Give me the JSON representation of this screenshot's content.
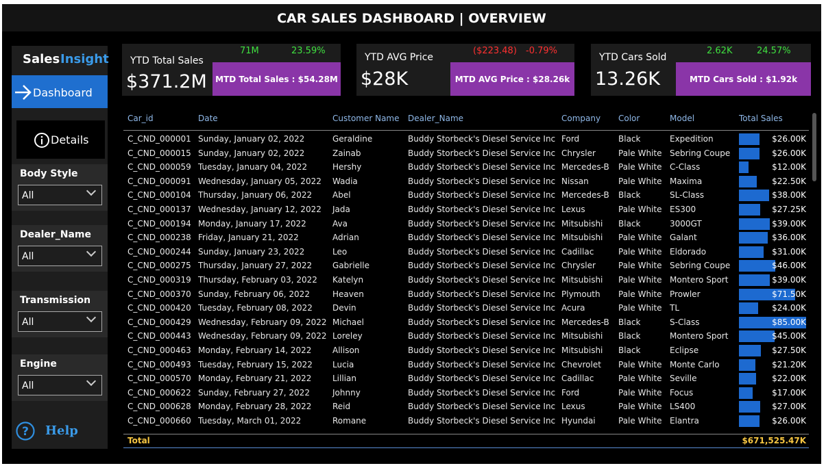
{
  "header": {
    "title": "CAR SALES DASHBOARD | OVERVIEW"
  },
  "sidebar": {
    "brand": [
      "Sales",
      "Insight"
    ],
    "nav": [
      "Dashboard",
      "Details"
    ],
    "filters": [
      {
        "label": "Body Style",
        "value": "All"
      },
      {
        "label": "Dealer_Name",
        "value": "All"
      },
      {
        "label": "Transmission",
        "value": "All"
      },
      {
        "label": "Engine",
        "value": "All"
      }
    ],
    "help": "Help"
  },
  "kpis": [
    {
      "title": "YTD Total Sales",
      "value": "$371.2M",
      "delta": "71M",
      "pct": "23.59%",
      "mtd": "MTD Total Sales : $54.28M"
    },
    {
      "title": "YTD AVG Price",
      "value": "$28K",
      "delta": "($223.48)",
      "pct": "-0.79%",
      "mtd": "MTD AVG Price : $28.26k"
    },
    {
      "title": "YTD Cars Sold",
      "value": "13.26K",
      "delta": "2.62K",
      "pct": "24.57%",
      "mtd": "MTD Cars Sold : $1.92k"
    }
  ],
  "table": {
    "columns": [
      "Car_id",
      "Date",
      "Customer Name",
      "Dealer_Name",
      "Company",
      "Color",
      "Model",
      "Total Sales"
    ],
    "rows": [
      [
        "C_CND_000001",
        "Sunday, January 02, 2022",
        "Geraldine",
        "Buddy Storbeck's Diesel Service Inc",
        "Ford",
        "Black",
        "Expedition",
        {
          "value": 26000,
          "label": "$26.00K"
        }
      ],
      [
        "C_CND_000015",
        "Sunday, January 02, 2022",
        "Zainab",
        "Buddy Storbeck's Diesel Service Inc",
        "Chrysler",
        "Pale White",
        "Sebring Coupe",
        {
          "value": 26000,
          "label": "$26.00K"
        }
      ],
      [
        "C_CND_000059",
        "Tuesday, January 04, 2022",
        "Hershy",
        "Buddy Storbeck's Diesel Service Inc",
        "Mercedes-B",
        "Pale White",
        "C-Class",
        {
          "value": 12000,
          "label": "$12.00K"
        }
      ],
      [
        "C_CND_000091",
        "Wednesday, January 05, 2022",
        "Wadia",
        "Buddy Storbeck's Diesel Service Inc",
        "Nissan",
        "Pale White",
        "Maxima",
        {
          "value": 22500,
          "label": "$22.50K"
        }
      ],
      [
        "C_CND_000104",
        "Thursday, January 06, 2022",
        "Abel",
        "Buddy Storbeck's Diesel Service Inc",
        "Mercedes-B",
        "Black",
        "SL-Class",
        {
          "value": 38000,
          "label": "$38.00K"
        }
      ],
      [
        "C_CND_000137",
        "Wednesday, January 12, 2022",
        "Jada",
        "Buddy Storbeck's Diesel Service Inc",
        "Lexus",
        "Pale White",
        "ES300",
        {
          "value": 27250,
          "label": "$27.25K"
        }
      ],
      [
        "C_CND_000194",
        "Monday, January 17, 2022",
        "Ava",
        "Buddy Storbeck's Diesel Service Inc",
        "Mitsubishi",
        "Black",
        "3000GT",
        {
          "value": 39000,
          "label": "$39.00K"
        }
      ],
      [
        "C_CND_000238",
        "Friday, January 21, 2022",
        "Adrian",
        "Buddy Storbeck's Diesel Service Inc",
        "Mitsubishi",
        "Pale White",
        "Galant",
        {
          "value": 36000,
          "label": "$36.00K"
        }
      ],
      [
        "C_CND_000244",
        "Sunday, January 23, 2022",
        "Leo",
        "Buddy Storbeck's Diesel Service Inc",
        "Cadillac",
        "Pale White",
        "Eldorado",
        {
          "value": 31000,
          "label": "$31.00K"
        }
      ],
      [
        "C_CND_000275",
        "Thursday, January 27, 2022",
        "Gabrielle",
        "Buddy Storbeck's Diesel Service Inc",
        "Chrysler",
        "Pale White",
        "Sebring Coupe",
        {
          "value": 46000,
          "label": "$46.00K"
        }
      ],
      [
        "C_CND_000319",
        "Thursday, February 03, 2022",
        "Katelyn",
        "Buddy Storbeck's Diesel Service Inc",
        "Mitsubishi",
        "Pale White",
        "Montero Sport",
        {
          "value": 39000,
          "label": "$39.00K"
        }
      ],
      [
        "C_CND_000370",
        "Sunday, February 06, 2022",
        "Heaven",
        "Buddy Storbeck's Diesel Service Inc",
        "Plymouth",
        "Pale White",
        "Prowler",
        {
          "value": 71500,
          "label": "$71.50K"
        }
      ],
      [
        "C_CND_000420",
        "Tuesday, February 08, 2022",
        "Devin",
        "Buddy Storbeck's Diesel Service Inc",
        "Acura",
        "Pale White",
        "TL",
        {
          "value": 24000,
          "label": "$24.00K"
        }
      ],
      [
        "C_CND_000429",
        "Wednesday, February 09, 2022",
        "Michael",
        "Buddy Storbeck's Diesel Service Inc",
        "Mercedes-B",
        "Black",
        "S-Class",
        {
          "value": 85000,
          "label": "$85.00K"
        }
      ],
      [
        "C_CND_000443",
        "Wednesday, February 09, 2022",
        "Loreley",
        "Buddy Storbeck's Diesel Service Inc",
        "Mitsubishi",
        "Black",
        "Montero Sport",
        {
          "value": 45000,
          "label": "$45.00K"
        }
      ],
      [
        "C_CND_000463",
        "Monday, February 14, 2022",
        "Allison",
        "Buddy Storbeck's Diesel Service Inc",
        "Mitsubishi",
        "Black",
        "Eclipse",
        {
          "value": 27500,
          "label": "$27.50K"
        }
      ],
      [
        "C_CND_000493",
        "Tuesday, February 15, 2022",
        "Lucia",
        "Buddy Storbeck's Diesel Service Inc",
        "Chevrolet",
        "Pale White",
        "Monte Carlo",
        {
          "value": 21200,
          "label": "$21.20K"
        }
      ],
      [
        "C_CND_000570",
        "Monday, February 21, 2022",
        "Lillian",
        "Buddy Storbeck's Diesel Service Inc",
        "Cadillac",
        "Pale White",
        "Seville",
        {
          "value": 22000,
          "label": "$22.00K"
        }
      ],
      [
        "C_CND_000622",
        "Sunday, February 27, 2022",
        "Johnny",
        "Buddy Storbeck's Diesel Service Inc",
        "Ford",
        "Pale White",
        "Focus",
        {
          "value": 17000,
          "label": "$17.00K"
        }
      ],
      [
        "C_CND_000628",
        "Monday, February 28, 2022",
        "Reid",
        "Buddy Storbeck's Diesel Service Inc",
        "Lexus",
        "Pale White",
        "LS400",
        {
          "value": 27000,
          "label": "$27.00K"
        }
      ],
      [
        "C_CND_000660",
        "Tuesday, March 01, 2022",
        "Romane",
        "Buddy Storbeck's Diesel Service Inc",
        "Hyundai",
        "Pale White",
        "Elantra",
        {
          "value": 26000,
          "label": "$26.00K"
        }
      ]
    ],
    "total": [
      "Total",
      "$671,525.47K"
    ]
  }
}
